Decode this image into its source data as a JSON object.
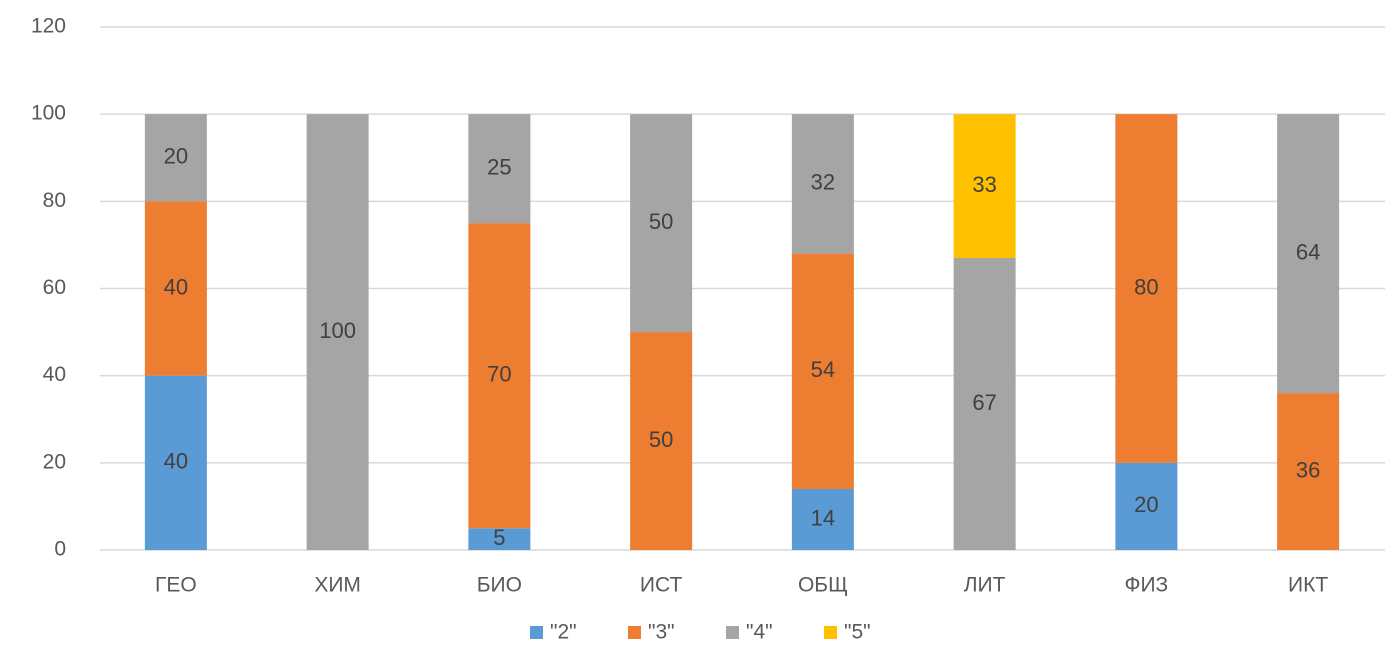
{
  "chart_data": {
    "type": "stacked_bar",
    "categories": [
      "ГЕО",
      "ХИМ",
      "БИО",
      "ИСТ",
      "ОБЩ",
      "ЛИТ",
      "ФИЗ",
      "ИКТ"
    ],
    "series": [
      {
        "name": "\"2\"",
        "color": "#5b9bd5",
        "values": [
          40,
          null,
          5,
          null,
          14,
          null,
          20,
          null
        ]
      },
      {
        "name": "\"3\"",
        "color": "#ed7d31",
        "values": [
          40,
          null,
          70,
          50,
          54,
          null,
          80,
          36
        ]
      },
      {
        "name": "\"4\"",
        "color": "#a5a5a5",
        "values": [
          20,
          100,
          25,
          50,
          32,
          67,
          null,
          64
        ]
      },
      {
        "name": "\"5\"",
        "color": "#ffc000",
        "values": [
          null,
          null,
          null,
          null,
          null,
          33,
          null,
          null
        ]
      }
    ],
    "ylim": [
      0,
      120
    ],
    "yticks": [
      0,
      20,
      40,
      60,
      80,
      100,
      120
    ],
    "grid": true,
    "legend": "bottom"
  }
}
